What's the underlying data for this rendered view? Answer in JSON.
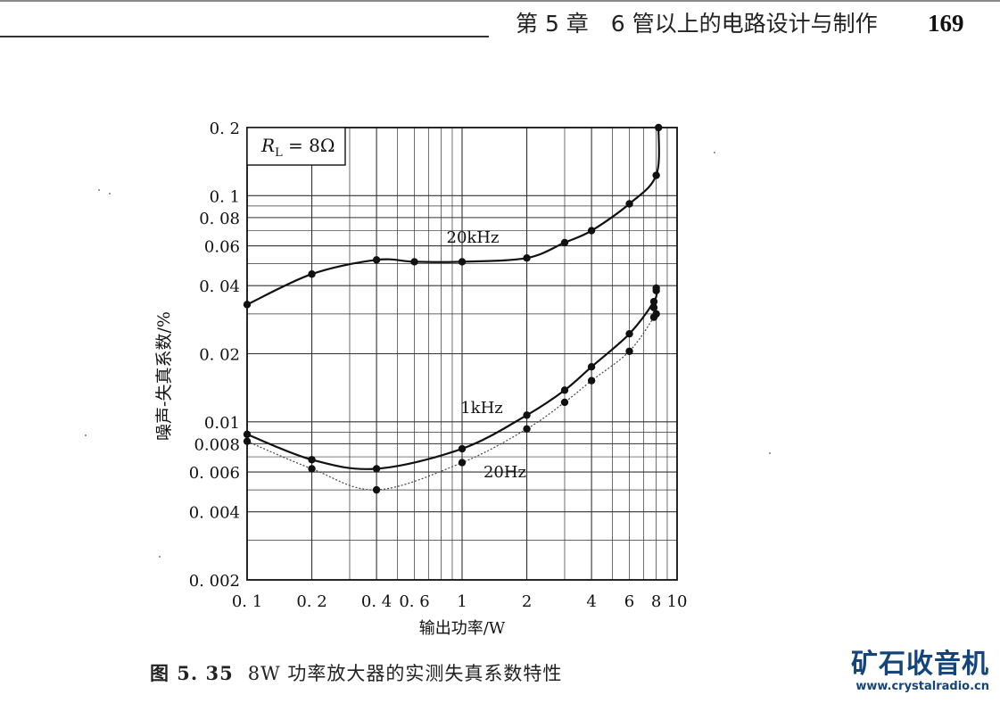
{
  "header": {
    "chapter_title": "第 5 章　6 管以上的电路设计与制作",
    "page_number": "169"
  },
  "caption": {
    "figure_number": "图 5. 35",
    "text": "8W 功率放大器的实测失真系数特性"
  },
  "watermark": {
    "logo_text": "矿石收音机",
    "url": "www.crystalradio.cn",
    "color": "#13457a"
  },
  "chart_data": {
    "type": "line",
    "x_scale": "log",
    "y_scale": "log",
    "xlabel": "输出功率/W",
    "ylabel": "噪声-失真系数/%",
    "xlim": [
      0.1,
      10
    ],
    "ylim": [
      0.002,
      0.2
    ],
    "x_ticks": [
      {
        "value": 0.1,
        "label": "0. 1"
      },
      {
        "value": 0.2,
        "label": "0. 2"
      },
      {
        "value": 0.4,
        "label": "0. 4"
      },
      {
        "value": 0.6,
        "label": "0. 6"
      },
      {
        "value": 1,
        "label": "1"
      },
      {
        "value": 2,
        "label": "2"
      },
      {
        "value": 4,
        "label": "4"
      },
      {
        "value": 6,
        "label": "6"
      },
      {
        "value": 8,
        "label": "8"
      },
      {
        "value": 10,
        "label": "10"
      }
    ],
    "y_ticks": [
      {
        "value": 0.002,
        "label": "0. 002"
      },
      {
        "value": 0.004,
        "label": "0. 004"
      },
      {
        "value": 0.006,
        "label": "0. 006"
      },
      {
        "value": 0.008,
        "label": "0.008"
      },
      {
        "value": 0.01,
        "label": "0.01"
      },
      {
        "value": 0.02,
        "label": "0. 02"
      },
      {
        "value": 0.04,
        "label": "0. 04"
      },
      {
        "value": 0.06,
        "label": "0.06"
      },
      {
        "value": 0.08,
        "label": "0. 08"
      },
      {
        "value": 0.1,
        "label": "0. 1"
      },
      {
        "value": 0.2,
        "label": "0. 2"
      }
    ],
    "grid": true,
    "annotation": {
      "label_prefix": "R",
      "label_subscript": "L",
      "label_suffix": " = 8Ω"
    },
    "series": [
      {
        "name": "20kHz",
        "style": "solid",
        "x": [
          0.1,
          0.2,
          0.4,
          0.6,
          1.0,
          2.0,
          3.0,
          4.0,
          6.0,
          8.0,
          8.2
        ],
        "y": [
          0.033,
          0.045,
          0.052,
          0.051,
          0.051,
          0.053,
          0.062,
          0.07,
          0.092,
          0.123,
          0.2
        ]
      },
      {
        "name": "1kHz",
        "style": "solid",
        "x": [
          0.1,
          0.2,
          0.4,
          1.0,
          2.0,
          3.0,
          4.0,
          6.0,
          7.8,
          8.0
        ],
        "y": [
          0.0088,
          0.0068,
          0.0062,
          0.0076,
          0.0107,
          0.0138,
          0.0175,
          0.0245,
          0.034,
          0.038
        ]
      },
      {
        "name": "20Hz",
        "style": "dotted",
        "x": [
          0.1,
          0.2,
          0.4,
          1.0,
          2.0,
          3.0,
          4.0,
          6.0,
          7.8,
          8.0
        ],
        "y": [
          0.0082,
          0.0062,
          0.005,
          0.0066,
          0.0093,
          0.0122,
          0.0152,
          0.0205,
          0.029,
          0.03
        ]
      }
    ],
    "extra_points": [
      {
        "x": 7.8,
        "y": 0.032
      },
      {
        "x": 8.0,
        "y": 0.039
      }
    ]
  }
}
